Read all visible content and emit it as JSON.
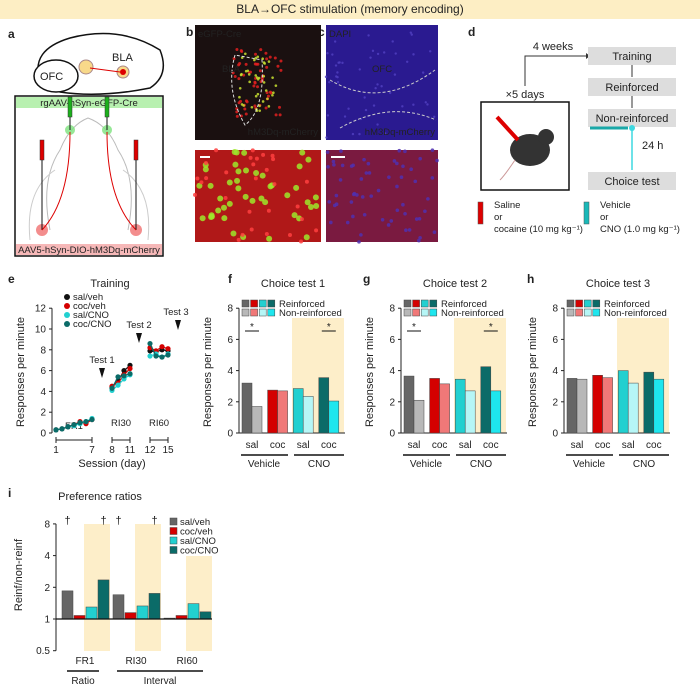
{
  "figure_title": "BLA→OFC stimulation (memory encoding)",
  "panel_labels": {
    "a": "a",
    "b": "b",
    "c": "c",
    "d": "d",
    "e": "e",
    "f": "f",
    "g": "g",
    "h": "h",
    "i": "i"
  },
  "panel_a": {
    "region_ofc": "OFC",
    "region_bla": "BLA",
    "virus_top": "rgAAV-hSyn-eGFP-Cre",
    "virus_bottom": "AAV5-hSyn-DIO-hM3Dq-mCherry"
  },
  "panel_b": {
    "label_green": "eGFP-Cre",
    "label_region": "BLA",
    "label_red": "hM3Dq-mCherry"
  },
  "panel_c": {
    "label_blue": "DAPI",
    "label_region": "OFC",
    "label_red": "hM3Dq-mCherry"
  },
  "panel_d": {
    "delay": "4 weeks",
    "repeat": "×5 days",
    "steps": [
      "Training",
      "Reinforced",
      "Non-reinforced",
      "Choice test"
    ],
    "interval": "24 h",
    "drug1": [
      "Saline",
      "or",
      "cocaine (10 mg kg⁻¹)"
    ],
    "drug2": [
      "Vehicle",
      "or",
      "CNO (1.0 mg kg⁻¹)"
    ]
  },
  "colors": {
    "sal_veh": "#666666",
    "sal_veh_line": "#111111",
    "coc_veh": "#d40000",
    "sal_cno": "#22d0d0",
    "coc_cno": "#0b6b68",
    "sal_veh_nonreinf": "#b8b8b8",
    "coc_veh_nonreinf": "#f07878",
    "sal_cno_nonreinf": "#b6f6f6",
    "coc_cno_nonreinf": "#1ee6ee",
    "cno_shading": "#fdeec9",
    "title_bar": "#fdeec4"
  },
  "chart_data": [
    {
      "panel": "e",
      "type": "line",
      "title": "Training",
      "xlabel": "Session (day)",
      "ylabel": "Responses per minute",
      "ylim": [
        0,
        12
      ],
      "yticks": [
        "0",
        "2",
        "4",
        "6",
        "8",
        "10",
        "12"
      ],
      "xticks": [
        "1",
        "7",
        "8",
        "11",
        "12",
        "15"
      ],
      "phases": [
        {
          "label": "FR1",
          "days": [
            1,
            7
          ]
        },
        {
          "label": "RI30",
          "days": [
            8,
            11
          ]
        },
        {
          "label": "RI60",
          "days": [
            12,
            15
          ]
        }
      ],
      "tests": [
        {
          "label": "Test 1",
          "after_day": 7
        },
        {
          "label": "Test 2",
          "after_day": 11
        },
        {
          "label": "Test 3",
          "after_day": 15
        }
      ],
      "legend": [
        "sal/veh",
        "coc/veh",
        "sal/CNO",
        "coc/CNO"
      ],
      "days": [
        1,
        2,
        3,
        4,
        5,
        6,
        7,
        8,
        9,
        10,
        11,
        12,
        13,
        14,
        15
      ],
      "series": [
        {
          "name": "sal/veh",
          "values": [
            0.3,
            0.4,
            0.6,
            0.8,
            1.0,
            1.0,
            1.3,
            4.4,
            5.0,
            6.0,
            6.5,
            7.9,
            7.8,
            8.0,
            7.9
          ]
        },
        {
          "name": "coc/veh",
          "values": [
            0.3,
            0.4,
            0.6,
            0.8,
            1.1,
            0.9,
            1.3,
            4.5,
            4.8,
            5.6,
            6.2,
            8.2,
            7.9,
            8.3,
            8.1
          ]
        },
        {
          "name": "sal/CNO",
          "values": [
            0.3,
            0.4,
            0.6,
            0.7,
            0.9,
            1.1,
            1.4,
            4.1,
            4.6,
            5.2,
            5.6,
            7.4,
            7.6,
            7.3,
            7.6
          ]
        },
        {
          "name": "coc/CNO",
          "values": [
            0.3,
            0.4,
            0.6,
            0.8,
            1.0,
            1.1,
            1.3,
            4.3,
            5.4,
            5.5,
            5.7,
            8.6,
            7.4,
            7.3,
            7.5
          ]
        }
      ]
    },
    {
      "panel": "f",
      "type": "bar",
      "title": "Choice test 1",
      "ylabel": "Responses per minute",
      "ylim": [
        0,
        8
      ],
      "yticks": [
        "0",
        "2",
        "4",
        "6",
        "8"
      ],
      "legend": [
        "Reinforced",
        "Non-reinforced"
      ],
      "categories": [
        "sal",
        "coc",
        "sal",
        "coc"
      ],
      "groups": [
        "Vehicle",
        "CNO"
      ],
      "series": [
        {
          "name": "Reinforced",
          "values": [
            3.2,
            2.75,
            2.85,
            3.55
          ]
        },
        {
          "name": "Non-reinforced",
          "values": [
            1.7,
            2.7,
            2.35,
            2.05
          ]
        }
      ],
      "significance": [
        {
          "pair": 0,
          "mark": "*"
        },
        {
          "pair": 3,
          "mark": "*"
        }
      ]
    },
    {
      "panel": "g",
      "type": "bar",
      "title": "Choice test 2",
      "ylabel": "Responses per minute",
      "ylim": [
        0,
        8
      ],
      "yticks": [
        "0",
        "2",
        "4",
        "6",
        "8"
      ],
      "legend": [
        "Reinforced",
        "Non-reinforced"
      ],
      "categories": [
        "sal",
        "coc",
        "sal",
        "coc"
      ],
      "groups": [
        "Vehicle",
        "CNO"
      ],
      "series": [
        {
          "name": "Reinforced",
          "values": [
            3.65,
            3.5,
            3.45,
            4.25
          ]
        },
        {
          "name": "Non-reinforced",
          "values": [
            2.1,
            3.15,
            2.7,
            2.7
          ]
        }
      ],
      "significance": [
        {
          "pair": 0,
          "mark": "*"
        },
        {
          "pair": 3,
          "mark": "*"
        }
      ]
    },
    {
      "panel": "h",
      "type": "bar",
      "title": "Choice test 3",
      "ylabel": "Responses per minute",
      "ylim": [
        0,
        8
      ],
      "yticks": [
        "0",
        "2",
        "4",
        "6",
        "8"
      ],
      "legend": [
        "Reinforced",
        "Non-reinforced"
      ],
      "categories": [
        "sal",
        "coc",
        "sal",
        "coc"
      ],
      "groups": [
        "Vehicle",
        "CNO"
      ],
      "series": [
        {
          "name": "Reinforced",
          "values": [
            3.5,
            3.7,
            4.0,
            3.9
          ]
        },
        {
          "name": "Non-reinforced",
          "values": [
            3.45,
            3.55,
            3.2,
            3.45
          ]
        }
      ],
      "significance": []
    },
    {
      "panel": "i",
      "type": "bar",
      "title": "Preference ratios",
      "ylabel": "Reinf/non-reinf",
      "yscale": "log2",
      "ylim": [
        0.5,
        8
      ],
      "yticks": [
        "0.5",
        "1",
        "2",
        "4",
        "8"
      ],
      "baseline": 1,
      "categories": [
        "FR1",
        "RI30",
        "RI60"
      ],
      "groups": [
        "Ratio",
        "Interval"
      ],
      "legend": [
        "sal/veh",
        "coc/veh",
        "sal/CNO",
        "coc/CNO"
      ],
      "series": [
        {
          "name": "sal/veh",
          "values": [
            1.85,
            1.7,
            1.02
          ]
        },
        {
          "name": "coc/veh",
          "values": [
            1.08,
            1.15,
            1.08
          ]
        },
        {
          "name": "sal/CNO",
          "values": [
            1.3,
            1.33,
            1.4
          ]
        },
        {
          "name": "coc/CNO",
          "values": [
            2.35,
            1.75,
            1.17
          ]
        }
      ],
      "daggers": [
        {
          "category": 0,
          "series": 0,
          "mark": "†"
        },
        {
          "category": 0,
          "series": 3,
          "mark": "†"
        },
        {
          "category": 1,
          "series": 0,
          "mark": "†"
        },
        {
          "category": 1,
          "series": 3,
          "mark": "†"
        }
      ]
    }
  ]
}
